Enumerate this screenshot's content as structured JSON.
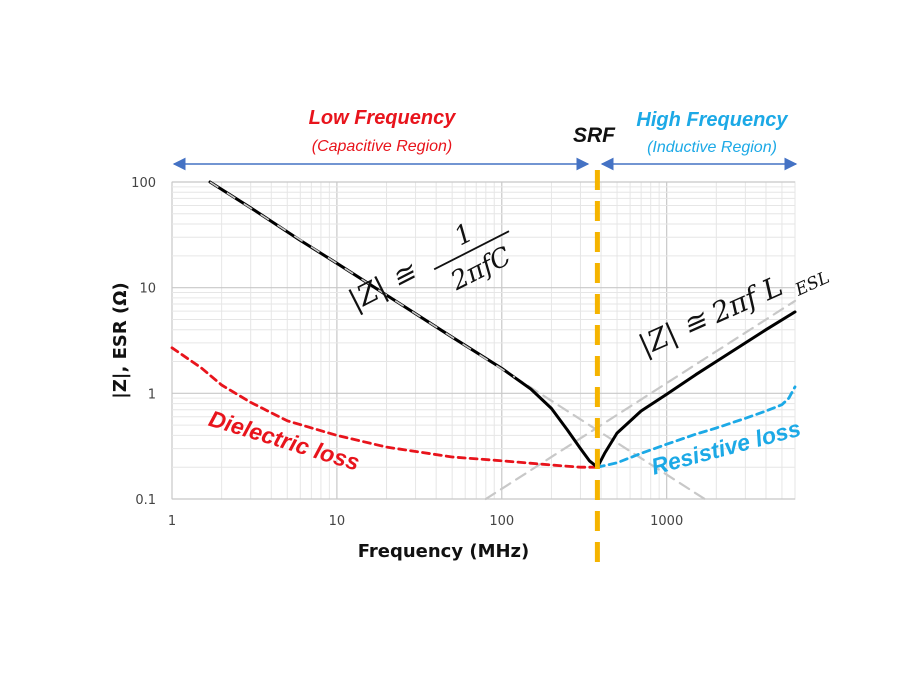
{
  "chart_data": {
    "type": "line",
    "xlabel": "Frequency (MHz)",
    "ylabel": "|Z|, ESR (Ω)",
    "xscale": "log",
    "yscale": "log",
    "xlim": [
      1,
      6000
    ],
    "ylim": [
      0.1,
      100
    ],
    "xticks": [
      1,
      10,
      100,
      1000
    ],
    "xtick_labels": [
      "1",
      "10",
      "100",
      "1000"
    ],
    "yticks": [
      0.1,
      1,
      10,
      100
    ],
    "ytick_labels": [
      "0.1",
      "1",
      "10",
      "100"
    ],
    "grid": true,
    "srf": {
      "label": "SRF",
      "x": 380,
      "color": "#f5b400"
    },
    "regions": {
      "low": {
        "title": "Low Frequency",
        "subtitle": "(Capacitive Region)",
        "color": "#e8141c",
        "arrow_color": "#4472c4"
      },
      "high": {
        "title": "High Frequency",
        "subtitle": "(Inductive Region)",
        "color": "#1ca9e6",
        "arrow_color": "#4472c4"
      }
    },
    "annotations": {
      "dielectric": {
        "text": "Dielectric loss",
        "color": "#e8141c"
      },
      "resistive": {
        "text": "Resistive loss",
        "color": "#1ca9e6"
      },
      "cap_formula": {
        "lhs": "|Z| ≅",
        "numerator": "1",
        "denominator": "2πfC"
      },
      "ind_formula": {
        "lhs": "|Z| ≅ 2πf L",
        "subscript": "ESL"
      }
    },
    "series": [
      {
        "role": "impedance",
        "color": "#000000",
        "style": "solid",
        "x": [
          1.7,
          3,
          6,
          10,
          20,
          50,
          100,
          150,
          200,
          250,
          300,
          340,
          380,
          420,
          500,
          700,
          1000,
          1500,
          2000,
          3000,
          4000,
          6000
        ],
        "y": [
          100,
          57,
          28,
          17,
          8.5,
          3.4,
          1.72,
          1.1,
          0.72,
          0.45,
          0.3,
          0.23,
          0.2,
          0.27,
          0.42,
          0.68,
          0.98,
          1.5,
          2.0,
          3.0,
          4.0,
          5.9
        ]
      },
      {
        "role": "capacitive-asymptote",
        "color": "#c8c8c8",
        "style": "dashed",
        "x": [
          1.7,
          1700
        ],
        "y": [
          100,
          0.1
        ]
      },
      {
        "role": "inductive-asymptote",
        "color": "#c8c8c8",
        "style": "dashed",
        "x": [
          80,
          6000
        ],
        "y": [
          0.1,
          7.5
        ]
      },
      {
        "role": "dielectric-loss",
        "color": "#e8141c",
        "style": "dashed",
        "x": [
          1,
          1.5,
          2,
          3,
          5,
          10,
          20,
          50,
          100,
          200,
          300,
          380
        ],
        "y": [
          2.7,
          1.75,
          1.2,
          0.82,
          0.55,
          0.4,
          0.31,
          0.25,
          0.23,
          0.21,
          0.2,
          0.2
        ]
      },
      {
        "role": "resistive-loss",
        "color": "#1ca9e6",
        "style": "dashed",
        "x": [
          380,
          500,
          700,
          1000,
          1500,
          2000,
          3000,
          4000,
          5000,
          5500,
          6000
        ],
        "y": [
          0.2,
          0.22,
          0.27,
          0.33,
          0.41,
          0.47,
          0.58,
          0.68,
          0.78,
          0.9,
          1.15
        ]
      }
    ]
  }
}
